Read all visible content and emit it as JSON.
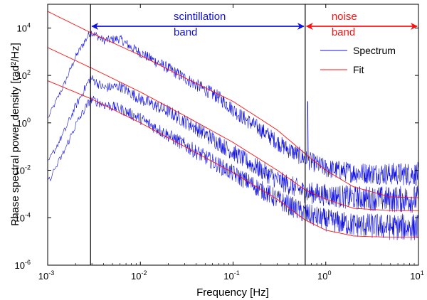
{
  "chart_data": {
    "type": "line",
    "title": "",
    "xlabel": "Frequency [Hz]",
    "ylabel": "Phase spectral power density [rad²/Hz]",
    "xscale": "log",
    "yscale": "log",
    "xlim": [
      0.001,
      10
    ],
    "ylim": [
      1e-06,
      100000
    ],
    "x_ticks": [
      {
        "value": 0.001,
        "base": "10",
        "exp": "-3"
      },
      {
        "value": 0.01,
        "base": "10",
        "exp": "-2"
      },
      {
        "value": 0.1,
        "base": "10",
        "exp": "-1"
      },
      {
        "value": 1,
        "base": "10",
        "exp": "0"
      },
      {
        "value": 10,
        "base": "10",
        "exp": "1"
      }
    ],
    "y_ticks": [
      {
        "value": 1e-06,
        "base": "10",
        "exp": "-6"
      },
      {
        "value": 0.0001,
        "base": "10",
        "exp": "-4"
      },
      {
        "value": 0.01,
        "base": "10",
        "exp": "-2"
      },
      {
        "value": 1,
        "base": "10",
        "exp": "0"
      },
      {
        "value": 100,
        "base": "10",
        "exp": "2"
      },
      {
        "value": 10000,
        "base": "10",
        "exp": "4"
      }
    ],
    "vertical_lines": [
      0.0029,
      0.6
    ],
    "bands": [
      {
        "line1": "scintillation",
        "line2": "band",
        "from": 0.0029,
        "to": 0.6,
        "color": "#1010e0"
      },
      {
        "line1": "noise",
        "line2": "band",
        "from": 0.6,
        "to": 10,
        "color": "#ff1010"
      }
    ],
    "legend": {
      "position": "top-right",
      "entries": [
        {
          "label": "Spectrum",
          "color": "#1010e0"
        },
        {
          "label": "Fit",
          "color": "#ff1010"
        }
      ]
    },
    "series": [
      {
        "name": "Spectrum (upper)",
        "color": "#1010e0",
        "points": [
          [
            0.001,
            1.5
          ],
          [
            0.0015,
            40
          ],
          [
            0.002,
            600
          ],
          [
            0.0029,
            7000
          ],
          [
            0.004,
            3000
          ],
          [
            0.006,
            3500
          ],
          [
            0.008,
            1500
          ],
          [
            0.012,
            600
          ],
          [
            0.02,
            200
          ],
          [
            0.04,
            40
          ],
          [
            0.07,
            12
          ],
          [
            0.12,
            2
          ],
          [
            0.2,
            0.5
          ],
          [
            0.35,
            0.1
          ],
          [
            0.6,
            0.03
          ],
          [
            1,
            0.012
          ],
          [
            2,
            0.008
          ],
          [
            5,
            0.007
          ],
          [
            10,
            0.007
          ]
        ],
        "noise": 0.3,
        "spike": {
          "x": 0.64,
          "y": 8
        }
      },
      {
        "name": "Spectrum (middle)",
        "color": "#1010e0",
        "points": [
          [
            0.001,
            0.02
          ],
          [
            0.0015,
            0.4
          ],
          [
            0.002,
            5
          ],
          [
            0.0029,
            80
          ],
          [
            0.004,
            30
          ],
          [
            0.006,
            35
          ],
          [
            0.01,
            10
          ],
          [
            0.02,
            3
          ],
          [
            0.04,
            0.6
          ],
          [
            0.08,
            0.1
          ],
          [
            0.15,
            0.02
          ],
          [
            0.3,
            0.004
          ],
          [
            0.6,
            0.0012
          ],
          [
            1,
            0.0009
          ],
          [
            2,
            0.0007
          ],
          [
            5,
            0.0006
          ],
          [
            10,
            0.0006
          ]
        ],
        "noise": 0.35
      },
      {
        "name": "Spectrum (lower)",
        "color": "#1010e0",
        "points": [
          [
            0.001,
            0.003
          ],
          [
            0.0015,
            0.06
          ],
          [
            0.002,
            0.8
          ],
          [
            0.0029,
            10
          ],
          [
            0.004,
            6
          ],
          [
            0.006,
            4
          ],
          [
            0.01,
            1.5
          ],
          [
            0.02,
            0.3
          ],
          [
            0.04,
            0.06
          ],
          [
            0.08,
            0.012
          ],
          [
            0.15,
            0.003
          ],
          [
            0.3,
            0.0006
          ],
          [
            0.6,
            0.00015
          ],
          [
            1,
            8e-05
          ],
          [
            2,
            5e-05
          ],
          [
            5,
            4e-05
          ],
          [
            10,
            4e-05
          ]
        ],
        "noise": 0.35
      },
      {
        "name": "Fit (upper)",
        "color": "#ff1010",
        "points": [
          [
            0.001,
            50000
          ],
          [
            0.003,
            6000
          ],
          [
            0.01,
            700
          ],
          [
            0.03,
            80
          ],
          [
            0.1,
            8
          ],
          [
            0.3,
            0.5
          ],
          [
            0.6,
            0.05
          ],
          [
            1,
            0.01
          ],
          [
            2,
            0.002
          ],
          [
            5,
            0.00075
          ],
          [
            10,
            0.0007
          ]
        ]
      },
      {
        "name": "Fit (middle)",
        "color": "#ff1010",
        "points": [
          [
            0.001,
            1500
          ],
          [
            0.003,
            200
          ],
          [
            0.01,
            20
          ],
          [
            0.03,
            2
          ],
          [
            0.1,
            0.15
          ],
          [
            0.3,
            0.01
          ],
          [
            0.6,
            0.0015
          ],
          [
            1,
            0.0006
          ],
          [
            2,
            0.00025
          ],
          [
            5,
            0.0002
          ],
          [
            10,
            0.0002
          ]
        ]
      },
      {
        "name": "Fit (lower)",
        "color": "#ff1010",
        "points": [
          [
            0.001,
            60
          ],
          [
            0.003,
            10
          ],
          [
            0.01,
            1
          ],
          [
            0.03,
            0.1
          ],
          [
            0.1,
            0.008
          ],
          [
            0.3,
            0.0006
          ],
          [
            0.6,
            8e-05
          ],
          [
            1,
            3e-05
          ],
          [
            2,
            1.7e-05
          ],
          [
            5,
            1.5e-05
          ],
          [
            10,
            1.5e-05
          ]
        ]
      }
    ]
  }
}
